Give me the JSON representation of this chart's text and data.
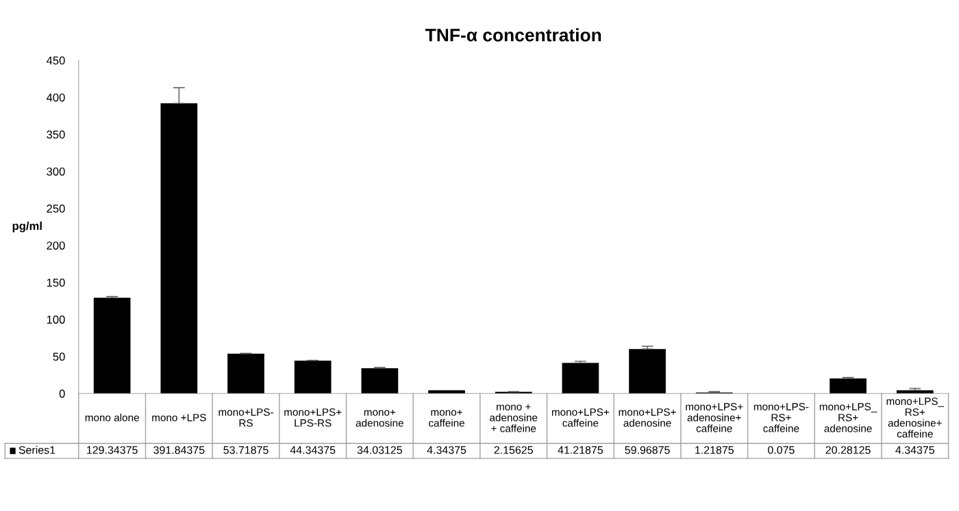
{
  "chart_data": {
    "type": "bar",
    "title": "TNF-α concentration",
    "ylabel": "pg/ml",
    "categories": [
      "mono alone",
      "mono +LPS",
      "mono+LPS-RS",
      "mono+LPS+LPS-RS",
      "mono+adenosine",
      "mono+caffeine",
      "mono +adenosine + caffeine",
      "mono+LPS+caffeine",
      "mono+LPS+adenosine",
      "mono+LPS+adenosine+caffeine",
      "mono+LPS-RS+caffeine",
      "mono+LPS_RS+adenosine",
      "mono+LPS_RS+adenosine+caffeine"
    ],
    "series": [
      {
        "name": "Series1",
        "color": "#000000",
        "values": [
          129.34375,
          391.84375,
          53.71875,
          44.34375,
          34.03125,
          4.34375,
          2.15625,
          41.21875,
          59.96875,
          1.21875,
          0.075,
          20.28125,
          4.34375
        ],
        "errors": [
          [
            129.34375,
            131
          ],
          [
            391.84375,
            413
          ],
          [
            53.71875,
            54.2
          ],
          [
            44.34375,
            44.8
          ],
          [
            34.03125,
            35
          ],
          null,
          [
            2.15625,
            2.6
          ],
          [
            41.21875,
            43.5
          ],
          [
            59.96875,
            63.8
          ],
          [
            1.21875,
            2.6
          ],
          null,
          [
            20.28125,
            21.8
          ],
          [
            4.34375,
            7
          ]
        ]
      }
    ],
    "ylim": [
      0,
      450
    ],
    "yticks": [
      0,
      50,
      100,
      150,
      200,
      250,
      300,
      350,
      400,
      450
    ],
    "data_labels": true,
    "legend": "bottom",
    "grid": false
  }
}
